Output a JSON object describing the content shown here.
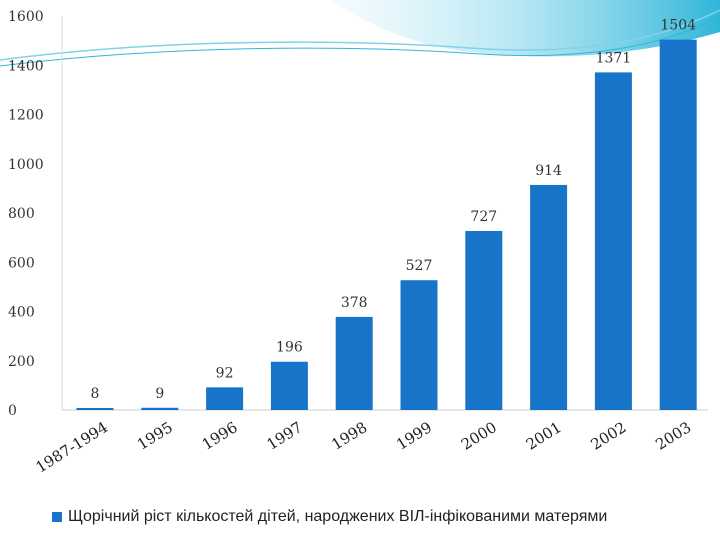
{
  "chart_data": {
    "type": "bar",
    "categories": [
      "1987-1994",
      "1995",
      "1996",
      "1997",
      "1998",
      "1999",
      "2000",
      "2001",
      "2002",
      "2003"
    ],
    "series": [
      {
        "name": "Щорічний ріст кількостей дітей, народжених ВІЛ-інфікованими матерями",
        "values": [
          8,
          9,
          92,
          196,
          378,
          527,
          727,
          914,
          1371,
          1504
        ]
      }
    ],
    "ylim": [
      0,
      1600
    ],
    "yticks": [
      "0",
      "200",
      "400",
      "600",
      "800",
      "1000",
      "1200",
      "1400",
      "1600"
    ],
    "grid": false,
    "legend_position": "bottom",
    "bar_color": "#1874c9",
    "decoration_colors": [
      "#2fb6d8",
      "#7fd3ea",
      "#c9eef8"
    ]
  }
}
